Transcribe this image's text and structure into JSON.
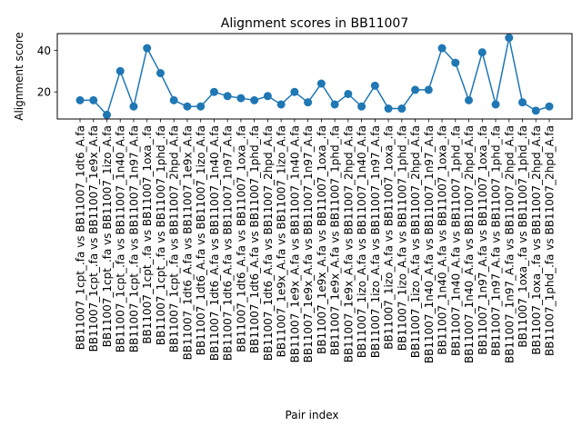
{
  "chart_data": {
    "type": "line",
    "title": "Alignment scores in BB11007",
    "xlabel": "Pair index",
    "ylabel": "Alignment score",
    "ylim": [
      7,
      48
    ],
    "yticks": [
      20,
      40
    ],
    "grid": false,
    "legend": "none",
    "markers": true,
    "color": "#1f77b4",
    "categories": [
      "BB11007_1cpt_.fa vs BB11007_1dt6_A.fa",
      "BB11007_1cpt_.fa vs BB11007_1e9x_A.fa",
      "BB11007_1cpt_.fa vs BB11007_1izo_A.fa",
      "BB11007_1cpt_.fa vs BB11007_1n40_A.fa",
      "BB11007_1cpt_.fa vs BB11007_1n97_A.fa",
      "BB11007_1cpt_.fa vs BB11007_1oxa_.fa",
      "BB11007_1cpt_.fa vs BB11007_1phd_.fa",
      "BB11007_1cpt_.fa vs BB11007_2hpd_A.fa",
      "BB11007_1dt6_A.fa vs BB11007_1e9x_A.fa",
      "BB11007_1dt6_A.fa vs BB11007_1izo_A.fa",
      "BB11007_1dt6_A.fa vs BB11007_1n40_A.fa",
      "BB11007_1dt6_A.fa vs BB11007_1n97_A.fa",
      "BB11007_1dt6_A.fa vs BB11007_1oxa_.fa",
      "BB11007_1dt6_A.fa vs BB11007_1phd_.fa",
      "BB11007_1dt6_A.fa vs BB11007_2hpd_A.fa",
      "BB11007_1e9x_A.fa vs BB11007_1izo_A.fa",
      "BB11007_1e9x_A.fa vs BB11007_1n40_A.fa",
      "BB11007_1e9x_A.fa vs BB11007_1n97_A.fa",
      "BB11007_1e9x_A.fa vs BB11007_1oxa_.fa",
      "BB11007_1e9x_A.fa vs BB11007_1phd_.fa",
      "BB11007_1e9x_A.fa vs BB11007_2hpd_A.fa",
      "BB11007_1izo_A.fa vs BB11007_1n40_A.fa",
      "BB11007_1izo_A.fa vs BB11007_1n97_A.fa",
      "BB11007_1izo_A.fa vs BB11007_1oxa_.fa",
      "BB11007_1izo_A.fa vs BB11007_1phd_.fa",
      "BB11007_1izo_A.fa vs BB11007_2hpd_A.fa",
      "BB11007_1n40_A.fa vs BB11007_1n97_A.fa",
      "BB11007_1n40_A.fa vs BB11007_1oxa_.fa",
      "BB11007_1n40_A.fa vs BB11007_1phd_.fa",
      "BB11007_1n40_A.fa vs BB11007_2hpd_A.fa",
      "BB11007_1n97_A.fa vs BB11007_1oxa_.fa",
      "BB11007_1n97_A.fa vs BB11007_1phd_.fa",
      "BB11007_1n97_A.fa vs BB11007_2hpd_A.fa",
      "BB11007_1oxa_.fa vs BB11007_1phd_.fa",
      "BB11007_1oxa_.fa vs BB11007_2hpd_A.fa",
      "BB11007_1phd_.fa vs BB11007_2hpd_A.fa"
    ],
    "values": [
      16,
      16,
      9,
      30,
      13,
      41,
      29,
      16,
      13,
      13,
      20,
      18,
      17,
      16,
      18,
      14,
      20,
      15,
      24,
      14,
      19,
      13,
      23,
      12,
      12,
      21,
      21,
      41,
      34,
      16,
      39,
      14,
      46,
      15,
      11,
      13
    ]
  }
}
